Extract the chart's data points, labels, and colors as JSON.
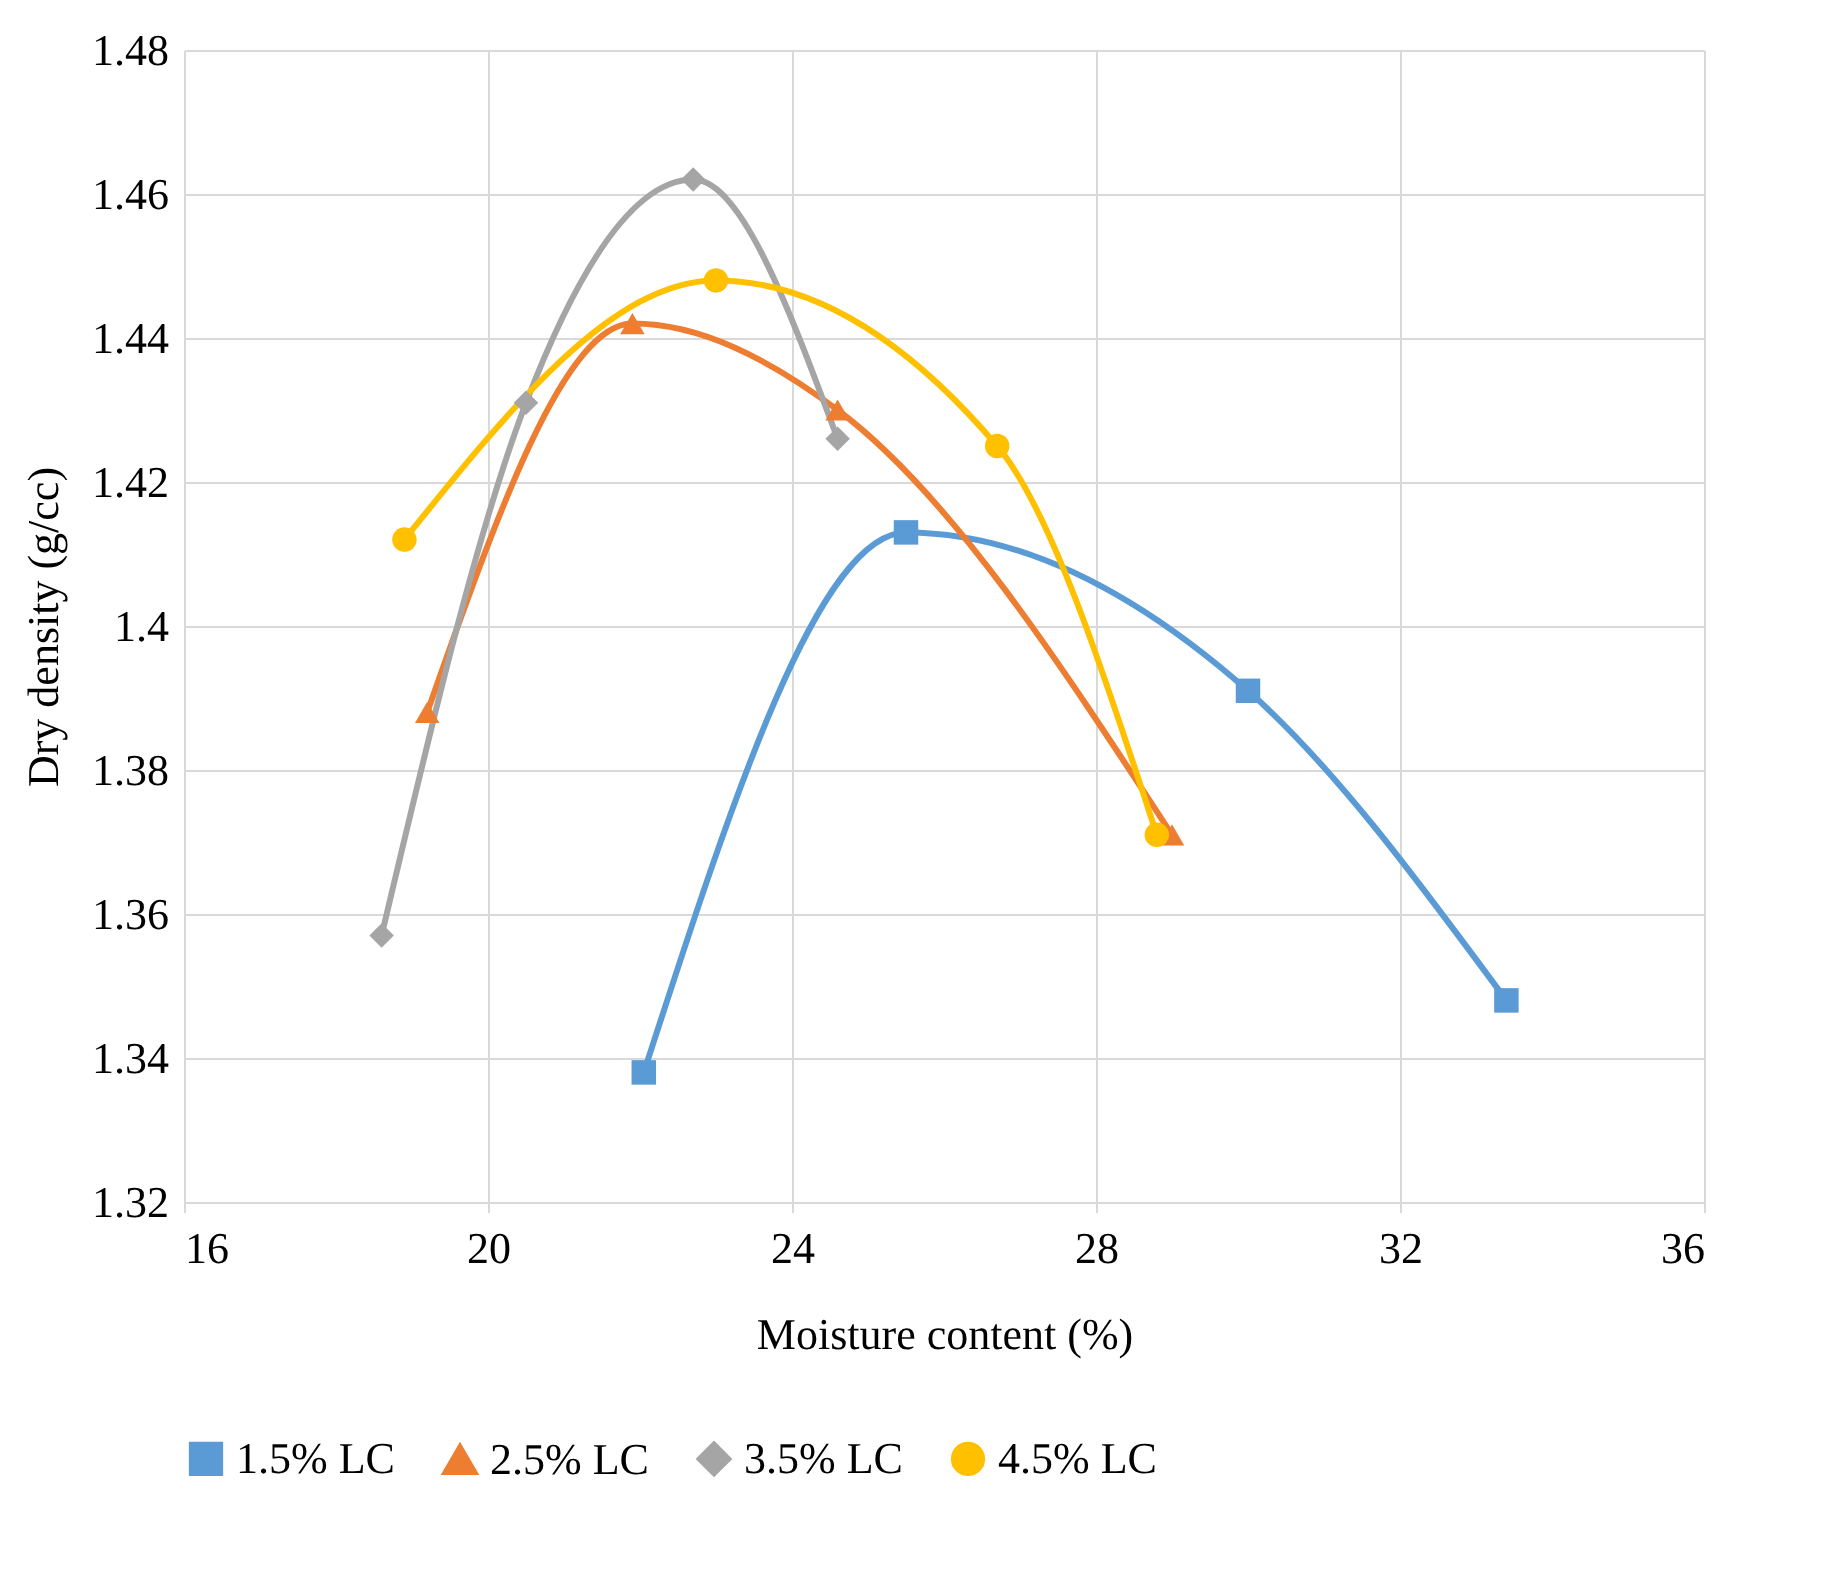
{
  "chart_data": {
    "type": "line",
    "xlabel": "Moisture content (%)",
    "ylabel": "Dry density (g/cc)",
    "xlim": [
      16,
      36
    ],
    "xticks": [
      16,
      20,
      24,
      28,
      32,
      36
    ],
    "ylim": [
      1.32,
      1.48
    ],
    "yticks": [
      1.32,
      1.34,
      1.36,
      1.38,
      1.4,
      1.42,
      1.44,
      1.46,
      1.48
    ],
    "grid": true,
    "legend": "bottom",
    "series": [
      {
        "name": "1.5% LC",
        "color": "#5b9bd5",
        "marker": "square",
        "x": [
          22.05,
          25.5,
          30.0,
          33.4
        ],
        "values": [
          1.338,
          1.413,
          1.391,
          1.348
        ]
      },
      {
        "name": "2.5% LC",
        "color": "#ed7d31",
        "marker": "triangle",
        "x": [
          19.2,
          21.9,
          24.6,
          29.0
        ],
        "values": [
          1.388,
          1.442,
          1.43,
          1.371
        ]
      },
      {
        "name": "3.5% LC",
        "color": "#a5a5a5",
        "marker": "diamond",
        "x": [
          18.6,
          20.5,
          22.7,
          24.6
        ],
        "values": [
          1.357,
          1.431,
          1.462,
          1.426
        ]
      },
      {
        "name": "4.5% LC",
        "color": "#ffc000",
        "marker": "circle",
        "x": [
          18.9,
          23.0,
          26.7,
          28.8
        ],
        "values": [
          1.412,
          1.448,
          1.425,
          1.371
        ]
      }
    ]
  }
}
